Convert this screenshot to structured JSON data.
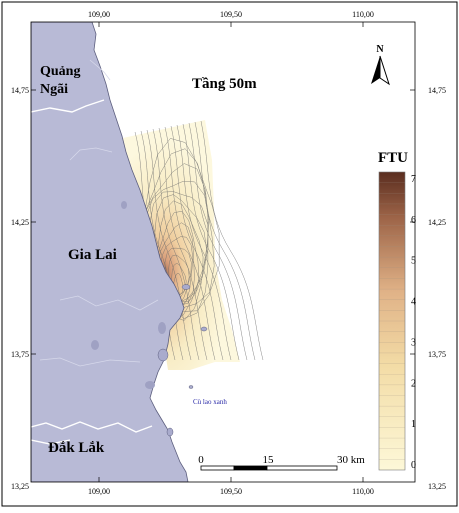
{
  "map": {
    "title": "Tầng 50m",
    "north_label": "N",
    "provinces": [
      "Quảng",
      "Ngãi",
      "Gia Lai",
      "Đắk Lắk"
    ],
    "island_label": "Cù lao xanh",
    "lon_ticks": [
      "109,00",
      "109,50",
      "110,00"
    ],
    "lat_ticks": [
      "14,75",
      "14,25",
      "13,75",
      "13,25"
    ],
    "scale_bar": {
      "labels": [
        "0",
        "15",
        "30 km"
      ]
    }
  },
  "legend": {
    "title": "FTU",
    "min": 0,
    "max": 7,
    "ticks": [
      "7",
      "6",
      "5",
      "4",
      "3",
      "2",
      "1",
      "0"
    ],
    "color_low": "#fdf8d8",
    "color_mid": "#e6b98a",
    "color_high": "#5a2d1f"
  },
  "colors": {
    "land": "#b8bad6",
    "land_dark": "#a9abcd",
    "border": "#ffffff",
    "frame": "#000000",
    "island_text": "#2a2aa8"
  }
}
